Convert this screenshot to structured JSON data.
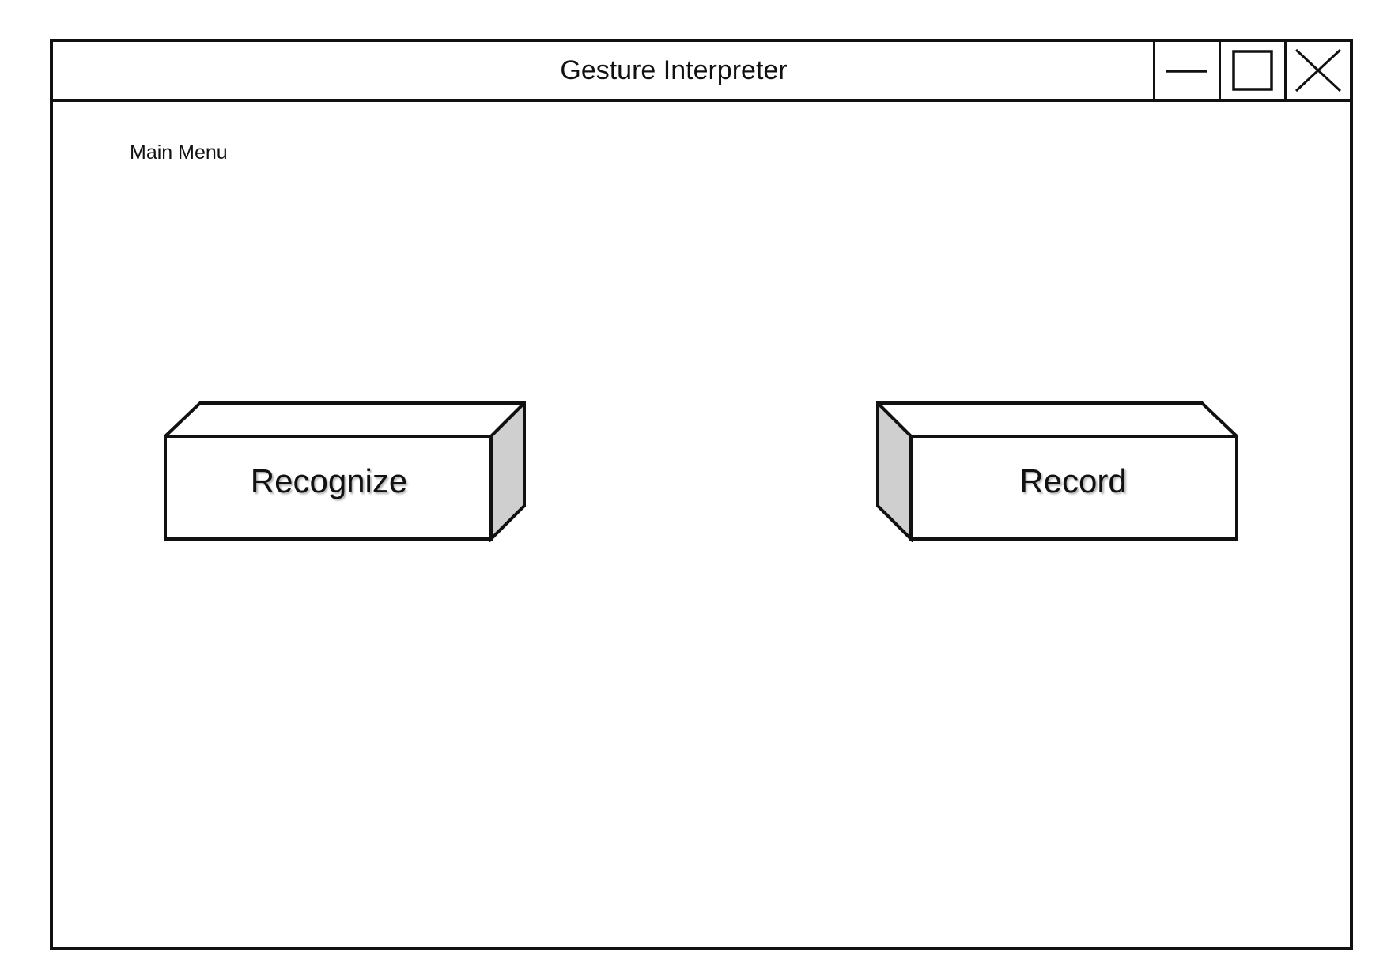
{
  "window": {
    "title": "Gesture Interpreter",
    "controls": {
      "minimize_icon": "minimize-icon",
      "maximize_icon": "maximize-icon",
      "close_icon": "close-icon"
    }
  },
  "main": {
    "menu_label": "Main Menu",
    "buttons": {
      "recognize": "Recognize",
      "record": "Record"
    }
  },
  "colors": {
    "outline": "#111111",
    "side_face": "#cfcfcf",
    "background": "#ffffff"
  }
}
